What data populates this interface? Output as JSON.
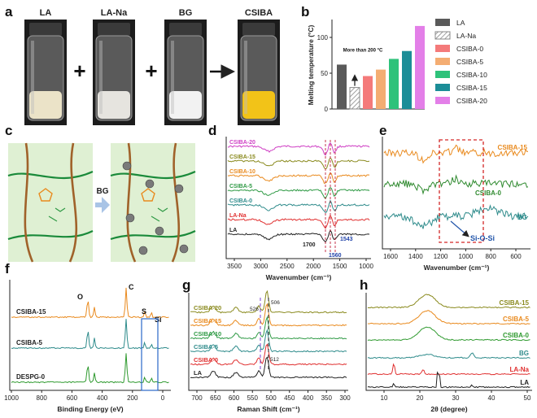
{
  "panels": {
    "a": "a",
    "b": "b",
    "c": "c",
    "d": "d",
    "e": "e",
    "f": "f",
    "g": "g",
    "h": "h"
  },
  "panel_a": {
    "labels": [
      "LA",
      "LA-Na",
      "BG",
      "CSIBA"
    ],
    "operators": [
      "+",
      "+",
      "→"
    ],
    "jar_fill_colors": [
      "#ebe3c8",
      "#e6e4df",
      "#f2f2f2",
      "#f2c318"
    ]
  },
  "panel_b": {
    "type": "bar",
    "ylabel": "Melting temperature (°C)",
    "ylim": [
      0,
      125
    ],
    "yticks": [
      "0",
      "50",
      "100"
    ],
    "annotation": "More than 200 °C",
    "categories": [
      "LA",
      "LA-Na",
      "CSIBA-0",
      "CSIBA-5",
      "CSIBA-10",
      "CSIBA-15",
      "CSIBA-20"
    ],
    "values": [
      62,
      30,
      46,
      55,
      70,
      81,
      116
    ],
    "colors": [
      "#5a5a5a",
      "hatch",
      "#f47a7a",
      "#f4ad72",
      "#2ec27a",
      "#1b8d97",
      "#e37fe8"
    ]
  },
  "panel_c": {
    "arrow_label": "BG"
  },
  "panel_d": {
    "type": "line",
    "xlabel": "Wavenumber (cm⁻¹)",
    "xticks": [
      "3500",
      "3000",
      "2500",
      "2000",
      "1500",
      "1000"
    ],
    "series": [
      {
        "name": "CSIBA-20",
        "color": "#cf3fc4"
      },
      {
        "name": "CSIBA-15",
        "color": "#8a8a1e"
      },
      {
        "name": "CSIBA-10",
        "color": "#e98a1e"
      },
      {
        "name": "CSIBA-5",
        "color": "#2f9a45"
      },
      {
        "name": "CSIBA-0",
        "color": "#2e8b8b"
      },
      {
        "name": "LA-Na",
        "color": "#e03030"
      },
      {
        "name": "LA",
        "color": "#222222"
      }
    ],
    "peak_labels": [
      "1700",
      "1560",
      "1543"
    ]
  },
  "panel_e": {
    "type": "line",
    "xlabel": "Wavenumber (cm⁻¹)",
    "xticks": [
      "1600",
      "1400",
      "1200",
      "1000",
      "800",
      "600"
    ],
    "series": [
      {
        "name": "CSIBA-15",
        "color": "#e98a1e"
      },
      {
        "name": "CSIBA-0",
        "color": "#2f8a2f"
      },
      {
        "name": "BG",
        "color": "#2e8b8b"
      }
    ],
    "annotation": "Si-O-Si"
  },
  "panel_f": {
    "type": "line",
    "xlabel": "Binding Energy (eV)",
    "xticks": [
      "1000",
      "800",
      "600",
      "400",
      "200",
      "0"
    ],
    "series": [
      {
        "name": "CSIBA-15",
        "color": "#e98a1e"
      },
      {
        "name": "CSIBA-5",
        "color": "#2e8b8b"
      },
      {
        "name": "DESPG-0",
        "color": "#2f9a2f"
      }
    ],
    "peak_labels": [
      "O",
      "C",
      "S",
      "Si"
    ]
  },
  "panel_g": {
    "type": "line",
    "xlabel": "Raman Shift (cm⁻¹)",
    "xticks": [
      "700",
      "650",
      "600",
      "550",
      "500",
      "450",
      "400",
      "350",
      "300"
    ],
    "series": [
      {
        "name": "CSIBA-20",
        "color": "#8a8a1e"
      },
      {
        "name": "CSIBA-15",
        "color": "#e98a1e"
      },
      {
        "name": "CSIBA-10",
        "color": "#2f9a45"
      },
      {
        "name": "CSIBA-5",
        "color": "#2e8b8b"
      },
      {
        "name": "CSIBA-0",
        "color": "#e03030"
      },
      {
        "name": "LA",
        "color": "#222222"
      }
    ],
    "peak_labels": [
      "526",
      "506",
      "512"
    ]
  },
  "panel_h": {
    "type": "line",
    "xlabel": "2θ (degree)",
    "xticks": [
      "10",
      "20",
      "30",
      "40",
      "50"
    ],
    "series": [
      {
        "name": "CSIBA-15",
        "color": "#8a8a1e"
      },
      {
        "name": "CSIBA-5",
        "color": "#e98a1e"
      },
      {
        "name": "CSIBA-0",
        "color": "#2f9a2f"
      },
      {
        "name": "BG",
        "color": "#2e8b8b"
      },
      {
        "name": "LA-Na",
        "color": "#e03030"
      },
      {
        "name": "LA",
        "color": "#222222"
      }
    ]
  }
}
